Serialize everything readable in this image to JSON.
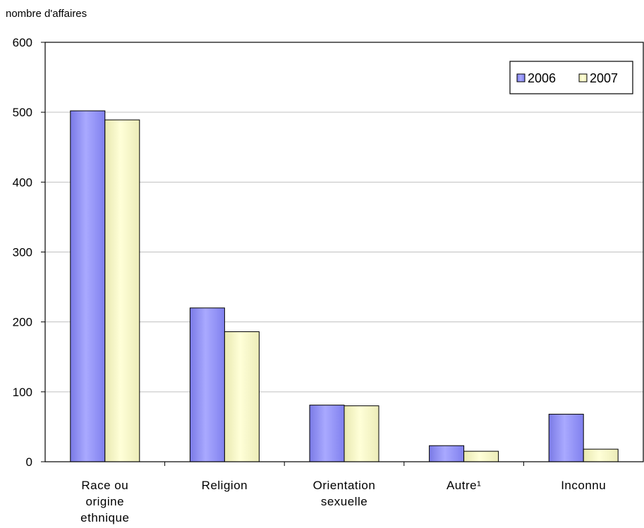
{
  "chart_data": {
    "type": "bar",
    "ylabel": "nombre d'affaires",
    "ylim": [
      0,
      600
    ],
    "yticks": [
      0,
      100,
      200,
      300,
      400,
      500,
      600
    ],
    "grid": true,
    "legend_position": "top-right",
    "categories": [
      [
        "Race ou",
        "origine",
        "ethnique"
      ],
      [
        "Religion"
      ],
      [
        "Orientation",
        "sexuelle"
      ],
      [
        "Autre¹"
      ],
      [
        "Inconnu"
      ]
    ],
    "series": [
      {
        "name": "2006",
        "color": "#9999ff",
        "values": [
          502,
          220,
          81,
          23,
          68
        ]
      },
      {
        "name": "2007",
        "color": "#ffffcc",
        "values": [
          489,
          186,
          80,
          15,
          18
        ]
      }
    ]
  }
}
